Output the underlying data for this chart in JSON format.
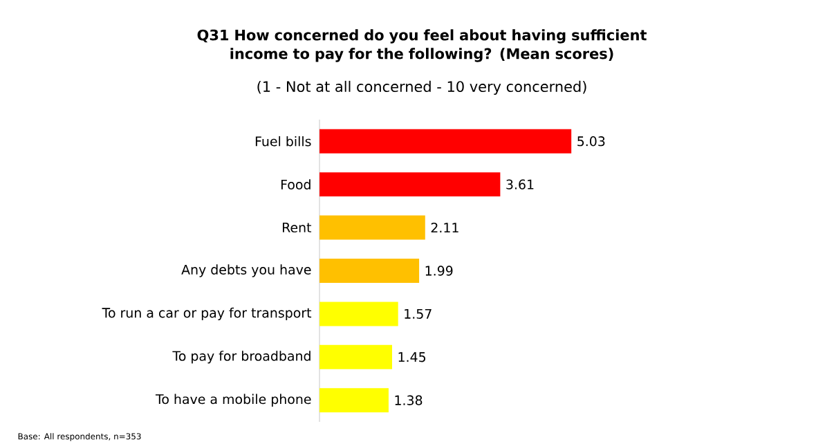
{
  "chart_data": {
    "type": "bar",
    "orientation": "horizontal",
    "title": "Q31 How concerned do you feel about having sufficient income to pay for the following?  (Mean scores)",
    "subtitle": "(1 - Not at all concerned - 10 very concerned)",
    "categories": [
      "Fuel bills",
      "Food",
      "Rent",
      "Any debts you have",
      "To run a car or pay for transport",
      "To pay for broadband",
      "To have a mobile phone"
    ],
    "values": [
      5.03,
      3.61,
      2.11,
      1.99,
      1.57,
      1.45,
      1.38
    ],
    "colors": [
      "#ff0000",
      "#ff0000",
      "#ffc000",
      "#ffc000",
      "#ffff00",
      "#ffff00",
      "#ffff00"
    ],
    "data_labels": true,
    "tick_labels": "y",
    "grid": false,
    "annotations": [
      "Base: All respondents, n=353"
    ]
  }
}
